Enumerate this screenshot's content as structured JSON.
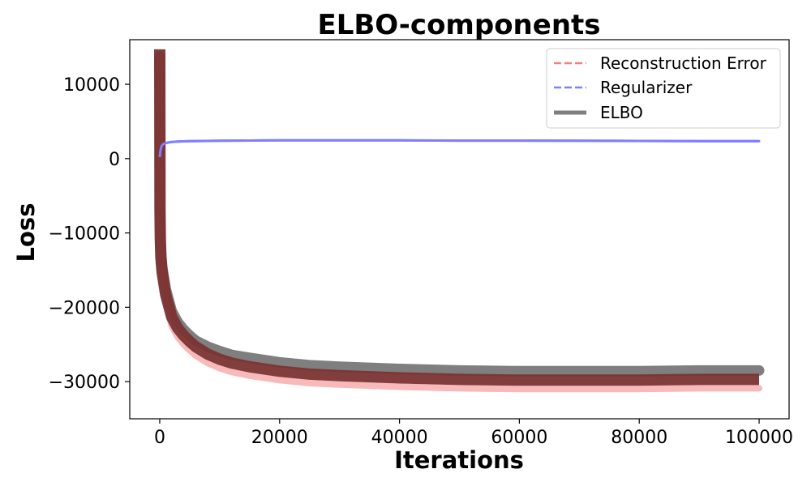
{
  "chart_data": {
    "type": "line",
    "title": "ELBO-components",
    "xlabel": "Iterations",
    "ylabel": "Loss",
    "xlim": [
      -5000,
      105000
    ],
    "ylim": [
      -35000,
      16000
    ],
    "x_ticks": [
      0,
      20000,
      40000,
      60000,
      80000,
      100000
    ],
    "x_tick_labels": [
      "0",
      "20000",
      "40000",
      "60000",
      "80000",
      "100000"
    ],
    "y_ticks": [
      10000,
      0,
      -10000,
      -20000,
      -30000
    ],
    "y_tick_labels": [
      "10000",
      "0",
      "−10000",
      "−20000",
      "−30000"
    ],
    "legend_position": "top-right",
    "grid": false,
    "series": [
      {
        "name": "Reconstruction Error",
        "color": "#f08080",
        "style": "dashed",
        "x": [
          0,
          50,
          100,
          200,
          400,
          700,
          1000,
          1500,
          2000,
          3000,
          4000,
          5000,
          6000,
          8000,
          10000,
          12000,
          15000,
          20000,
          25000,
          30000,
          40000,
          50000,
          60000,
          70000,
          80000,
          90000,
          100000
        ],
        "y": [
          13500,
          -8000,
          -12000,
          -14500,
          -16500,
          -18000,
          -19500,
          -21000,
          -22500,
          -24000,
          -25000,
          -25800,
          -26500,
          -27500,
          -28200,
          -28700,
          -29200,
          -29800,
          -30200,
          -30400,
          -30700,
          -30900,
          -31000,
          -31000,
          -31000,
          -30900,
          -30900
        ]
      },
      {
        "name": "Regularizer",
        "color": "#7f7fff",
        "style": "dashed",
        "x": [
          0,
          100,
          300,
          600,
          1000,
          2000,
          3000,
          5000,
          10000,
          20000,
          30000,
          40000,
          50000,
          60000,
          70000,
          80000,
          90000,
          100000
        ],
        "y": [
          200,
          1000,
          1700,
          1950,
          2100,
          2250,
          2300,
          2350,
          2400,
          2450,
          2450,
          2450,
          2420,
          2420,
          2400,
          2380,
          2350,
          2350
        ]
      },
      {
        "name": "ELBO",
        "color": "#7f7f7f",
        "style": "solid",
        "x": [
          0,
          50,
          100,
          200,
          400,
          700,
          1000,
          1500,
          2000,
          3000,
          4000,
          5000,
          6000,
          8000,
          10000,
          12000,
          15000,
          20000,
          25000,
          30000,
          40000,
          50000,
          60000,
          70000,
          80000,
          90000,
          100000
        ],
        "y": [
          13700,
          -7000,
          -11000,
          -12500,
          -14500,
          -16000,
          -17500,
          -19000,
          -20500,
          -22000,
          -23000,
          -23800,
          -24500,
          -25300,
          -25900,
          -26400,
          -26800,
          -27400,
          -27800,
          -28000,
          -28300,
          -28500,
          -28600,
          -28600,
          -28600,
          -28500,
          -28500
        ]
      }
    ]
  }
}
